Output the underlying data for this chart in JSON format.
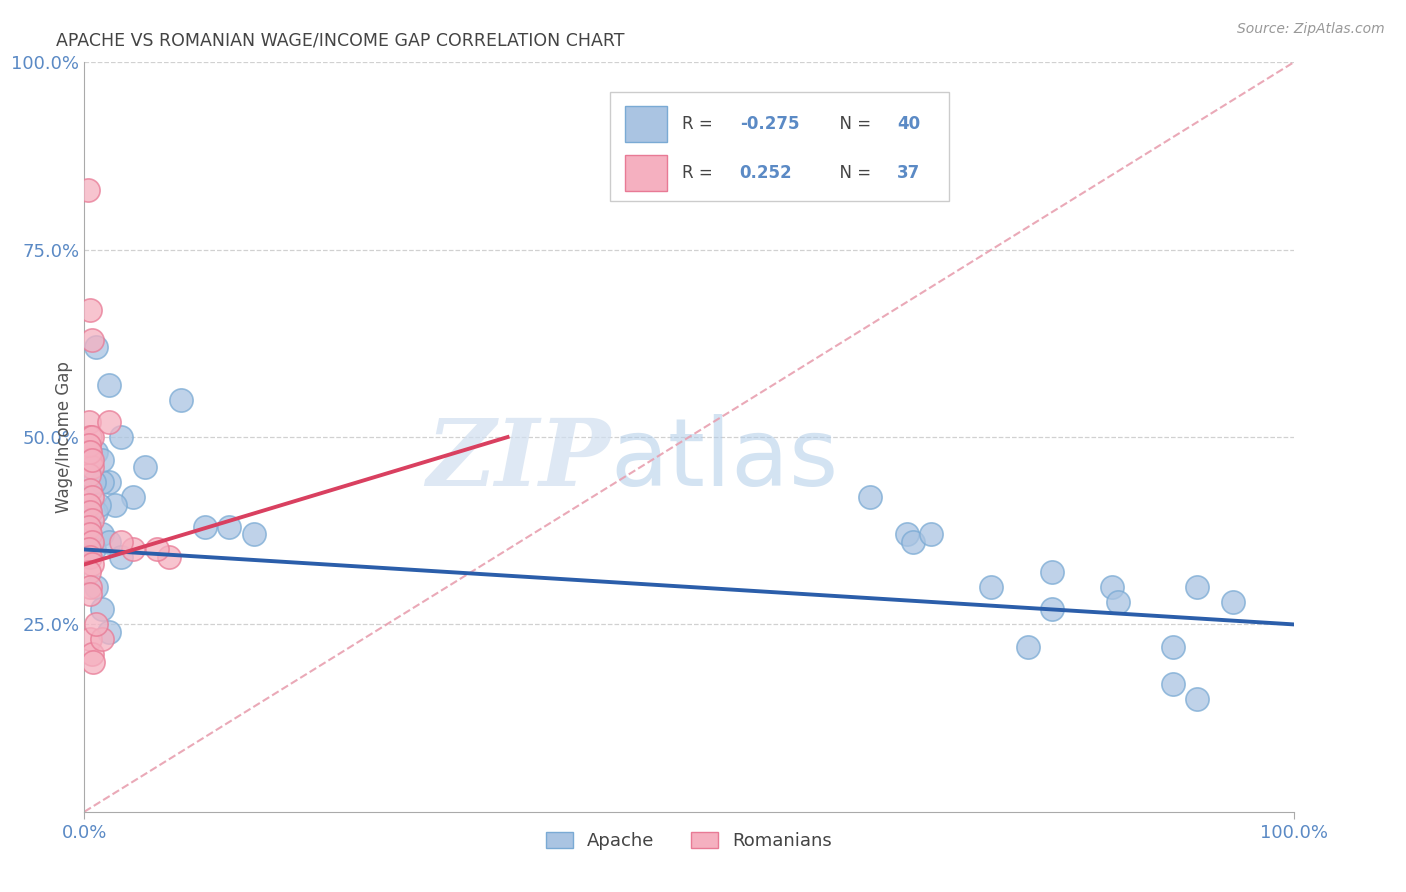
{
  "title": "APACHE VS ROMANIAN WAGE/INCOME GAP CORRELATION CHART",
  "source": "Source: ZipAtlas.com",
  "ylabel": "Wage/Income Gap",
  "watermark_zip": "ZIP",
  "watermark_atlas": "atlas",
  "apache_R": -0.275,
  "apache_N": 40,
  "romanian_R": 0.252,
  "romanian_N": 37,
  "apache_color": "#aac4e2",
  "apache_edge": "#7aaad4",
  "romanian_color": "#f5b0c0",
  "romanian_edge": "#e87a95",
  "apache_line_color": "#2b5eaa",
  "romanian_line_color": "#d94060",
  "ref_line_color": "#e8a0b0",
  "background_color": "#ffffff",
  "grid_color": "#cccccc",
  "title_color": "#444444",
  "axis_label_color": "#5b8ac5",
  "legend_text_color": "#444444",
  "apache_points": [
    [
      1.0,
      62
    ],
    [
      2.0,
      57
    ],
    [
      5.0,
      46
    ],
    [
      4.0,
      42
    ],
    [
      2.0,
      44
    ],
    [
      3.0,
      50
    ],
    [
      1.5,
      44
    ],
    [
      2.5,
      41
    ],
    [
      1.0,
      40
    ],
    [
      0.5,
      40
    ],
    [
      1.0,
      48
    ],
    [
      0.8,
      44
    ],
    [
      1.2,
      41
    ],
    [
      1.5,
      37
    ],
    [
      0.8,
      35
    ],
    [
      1.5,
      47
    ],
    [
      2.0,
      36
    ],
    [
      3.0,
      34
    ],
    [
      1.0,
      30
    ],
    [
      1.5,
      27
    ],
    [
      2.0,
      24
    ],
    [
      8.0,
      55
    ],
    [
      10.0,
      38
    ],
    [
      12.0,
      38
    ],
    [
      14.0,
      37
    ],
    [
      65.0,
      42
    ],
    [
      68.0,
      37
    ],
    [
      68.5,
      36
    ],
    [
      75.0,
      30
    ],
    [
      80.0,
      27
    ],
    [
      80.0,
      32
    ],
    [
      85.0,
      30
    ],
    [
      85.5,
      28
    ],
    [
      90.0,
      22
    ],
    [
      90.0,
      17
    ],
    [
      92.0,
      15
    ],
    [
      92.0,
      30
    ],
    [
      95.0,
      28
    ],
    [
      70.0,
      37
    ],
    [
      78.0,
      22
    ]
  ],
  "romanian_points": [
    [
      0.3,
      83
    ],
    [
      0.5,
      67
    ],
    [
      0.6,
      63
    ],
    [
      0.4,
      52
    ],
    [
      0.5,
      50
    ],
    [
      0.6,
      50
    ],
    [
      0.4,
      48
    ],
    [
      0.5,
      47
    ],
    [
      0.6,
      46
    ],
    [
      0.4,
      45
    ],
    [
      0.5,
      43
    ],
    [
      0.6,
      42
    ],
    [
      0.4,
      41
    ],
    [
      0.5,
      40
    ],
    [
      0.6,
      39
    ],
    [
      0.4,
      38
    ],
    [
      0.5,
      37
    ],
    [
      0.6,
      36
    ],
    [
      0.4,
      35
    ],
    [
      0.5,
      34
    ],
    [
      0.6,
      33
    ],
    [
      0.4,
      32
    ],
    [
      0.5,
      30
    ],
    [
      2.0,
      52
    ],
    [
      4.0,
      35
    ],
    [
      7.0,
      34
    ],
    [
      0.5,
      23
    ],
    [
      0.6,
      21
    ],
    [
      3.0,
      36
    ],
    [
      0.4,
      49
    ],
    [
      0.5,
      48
    ],
    [
      0.6,
      47
    ],
    [
      0.5,
      29
    ],
    [
      1.5,
      23
    ],
    [
      0.7,
      20
    ],
    [
      1.0,
      25
    ],
    [
      6.0,
      35
    ]
  ],
  "xmin": 0,
  "xmax": 100,
  "ymin": 0,
  "ymax": 100,
  "ytick_values": [
    25,
    50,
    75,
    100
  ],
  "ytick_labels": [
    "25.0%",
    "50.0%",
    "75.0%",
    "100.0%"
  ],
  "xtick_values": [
    0,
    100
  ],
  "xtick_labels": [
    "0.0%",
    "100.0%"
  ],
  "apache_trend_x": [
    0,
    100
  ],
  "apache_trend_y": [
    35,
    25
  ],
  "romanian_trend_x": [
    0,
    35
  ],
  "romanian_trend_y": [
    33,
    50
  ],
  "ref_line_x": [
    0,
    100
  ],
  "ref_line_y": [
    0,
    100
  ]
}
